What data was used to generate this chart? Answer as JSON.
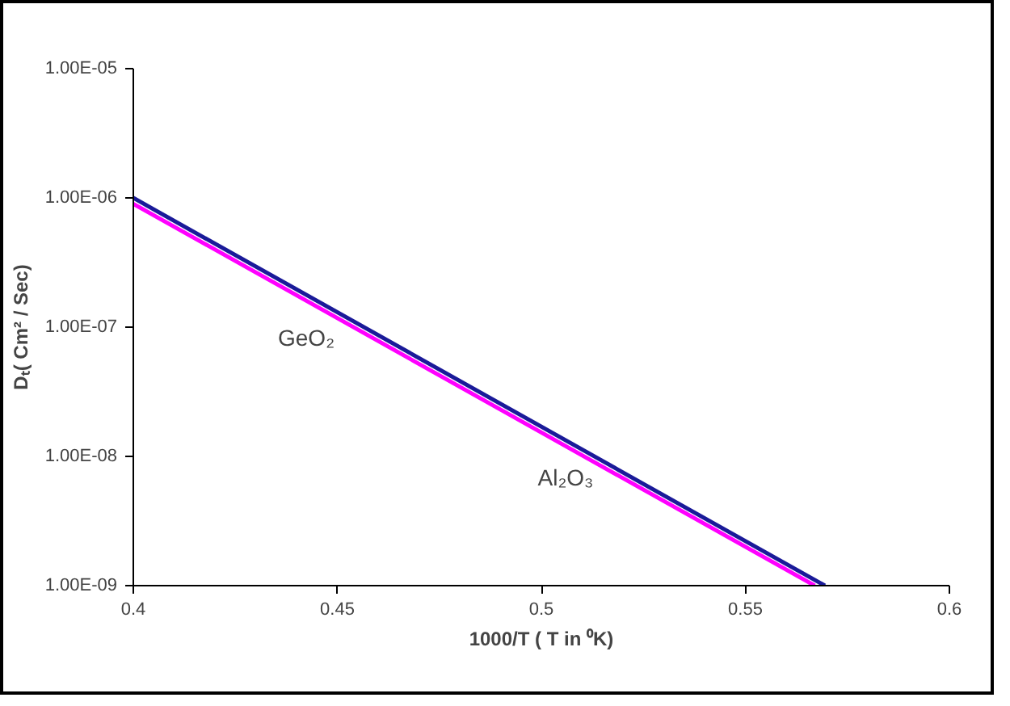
{
  "chart_data": {
    "type": "line",
    "xlabel": "1000/T ( T in ⁰K)",
    "ylabel": "Dₜ( Cm² / Sec)",
    "log": "y",
    "xlim": [
      0.4,
      0.6
    ],
    "xticks": [
      0.4,
      0.45,
      0.5,
      0.55,
      0.6
    ],
    "ylim": [
      1e-09,
      1e-05
    ],
    "yticks": [
      {
        "value": 1e-09,
        "label": "1.00E-09"
      },
      {
        "value": 1e-08,
        "label": "1.00E-08"
      },
      {
        "value": 1e-07,
        "label": "1.00E-07"
      },
      {
        "value": 1e-06,
        "label": "1.00E-06"
      },
      {
        "value": 1e-05,
        "label": "1.00E-05"
      }
    ],
    "grid": false,
    "series": [
      {
        "name": "GeO₂",
        "color": "#ff00ff",
        "x": [
          0.4,
          0.567
        ],
        "values": [
          9e-07,
          1e-09
        ]
      },
      {
        "name": "Al₂O₃",
        "color": "#1a1a99",
        "x": [
          0.4,
          0.5695
        ],
        "values": [
          1e-06,
          1e-09
        ]
      }
    ]
  }
}
